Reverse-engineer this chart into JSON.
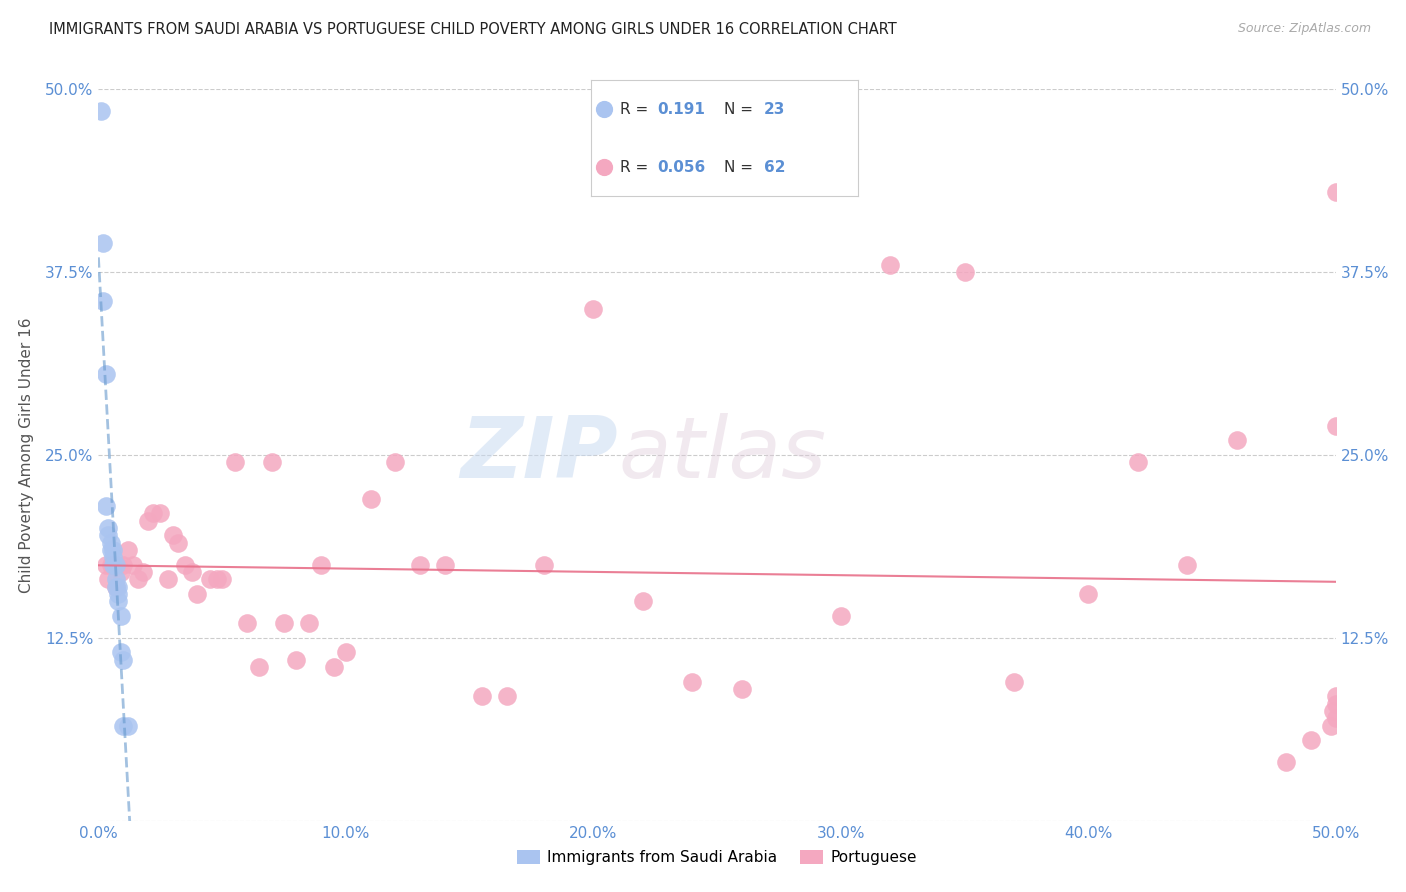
{
  "title": "IMMIGRANTS FROM SAUDI ARABIA VS PORTUGUESE CHILD POVERTY AMONG GIRLS UNDER 16 CORRELATION CHART",
  "source": "Source: ZipAtlas.com",
  "ylabel": "Child Poverty Among Girls Under 16",
  "xlim": [
    0,
    0.5
  ],
  "ylim": [
    0,
    0.5
  ],
  "xticks": [
    0.0,
    0.1,
    0.2,
    0.3,
    0.4,
    0.5
  ],
  "yticks": [
    0.0,
    0.125,
    0.25,
    0.375,
    0.5
  ],
  "xticklabels": [
    "0.0%",
    "10.0%",
    "20.0%",
    "30.0%",
    "40.0%",
    "50.0%"
  ],
  "yticklabels": [
    "",
    "12.5%",
    "25.0%",
    "37.5%",
    "50.0%"
  ],
  "grid_color": "#cccccc",
  "background_color": "#ffffff",
  "series1_color": "#aac4f0",
  "series2_color": "#f4a8c0",
  "trendline1_color": "#6699cc",
  "trendline2_color": "#e8708a",
  "legend_R1": "0.191",
  "legend_N1": "23",
  "legend_R2": "0.056",
  "legend_N2": "62",
  "legend_label1": "Immigrants from Saudi Arabia",
  "legend_label2": "Portuguese",
  "watermark_zip": "ZIP",
  "watermark_atlas": "atlas",
  "series1_x": [
    0.001,
    0.002,
    0.002,
    0.003,
    0.003,
    0.004,
    0.004,
    0.005,
    0.005,
    0.006,
    0.006,
    0.006,
    0.007,
    0.007,
    0.007,
    0.008,
    0.008,
    0.008,
    0.009,
    0.009,
    0.01,
    0.01,
    0.012
  ],
  "series1_y": [
    0.485,
    0.395,
    0.355,
    0.305,
    0.215,
    0.2,
    0.195,
    0.19,
    0.185,
    0.185,
    0.18,
    0.175,
    0.175,
    0.165,
    0.16,
    0.16,
    0.155,
    0.15,
    0.14,
    0.115,
    0.11,
    0.065,
    0.065
  ],
  "series2_x": [
    0.003,
    0.004,
    0.005,
    0.006,
    0.007,
    0.008,
    0.009,
    0.01,
    0.012,
    0.014,
    0.016,
    0.018,
    0.02,
    0.022,
    0.025,
    0.028,
    0.03,
    0.032,
    0.035,
    0.038,
    0.04,
    0.045,
    0.048,
    0.05,
    0.055,
    0.06,
    0.065,
    0.07,
    0.075,
    0.08,
    0.085,
    0.09,
    0.095,
    0.1,
    0.11,
    0.12,
    0.13,
    0.14,
    0.155,
    0.165,
    0.18,
    0.2,
    0.22,
    0.24,
    0.26,
    0.3,
    0.32,
    0.35,
    0.37,
    0.4,
    0.42,
    0.44,
    0.46,
    0.48,
    0.49,
    0.498,
    0.499,
    0.5,
    0.5,
    0.5,
    0.5,
    0.5
  ],
  "series2_y": [
    0.175,
    0.165,
    0.175,
    0.175,
    0.16,
    0.175,
    0.17,
    0.175,
    0.185,
    0.175,
    0.165,
    0.17,
    0.205,
    0.21,
    0.21,
    0.165,
    0.195,
    0.19,
    0.175,
    0.17,
    0.155,
    0.165,
    0.165,
    0.165,
    0.245,
    0.135,
    0.105,
    0.245,
    0.135,
    0.11,
    0.135,
    0.175,
    0.105,
    0.115,
    0.22,
    0.245,
    0.175,
    0.175,
    0.085,
    0.085,
    0.175,
    0.35,
    0.15,
    0.095,
    0.09,
    0.14,
    0.38,
    0.375,
    0.095,
    0.155,
    0.245,
    0.175,
    0.26,
    0.04,
    0.055,
    0.065,
    0.075,
    0.085,
    0.27,
    0.07,
    0.08,
    0.43
  ]
}
